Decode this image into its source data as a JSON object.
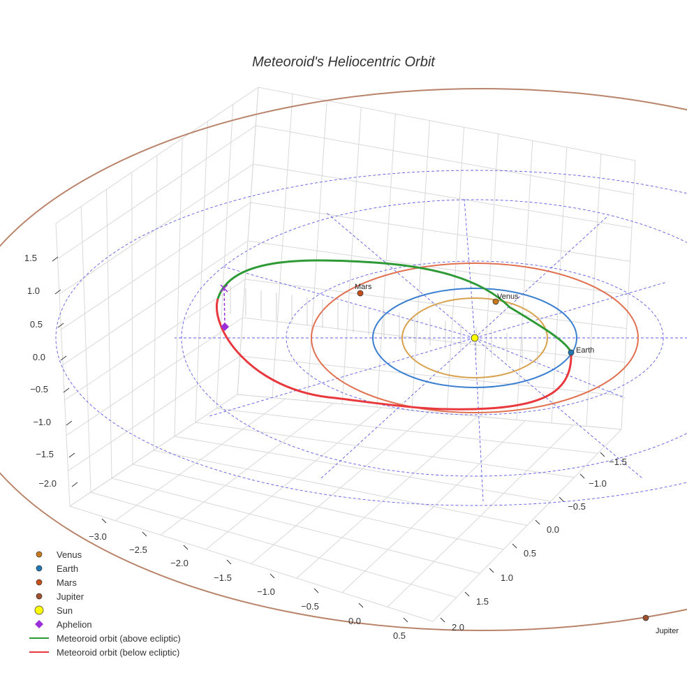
{
  "chart_data": {
    "type": "line",
    "projection": "3d",
    "title": "Meteoroid's Heliocentric Orbit",
    "axes": {
      "x": {
        "range": [
          -3.2,
          0.7
        ],
        "ticks": [
          -3.0,
          -2.5,
          -2.0,
          -1.5,
          -1.0,
          -0.5,
          0.0,
          0.5
        ],
        "tick_labels": [
          "−3.0",
          "−2.5",
          "−2.0",
          "−1.5",
          "−1.0",
          "−0.5",
          "0.0",
          "0.5"
        ]
      },
      "y": {
        "range": [
          -1.8,
          2.2
        ],
        "ticks": [
          -1.5,
          -1.0,
          -0.5,
          0.0,
          0.5,
          1.0,
          1.5,
          2.0
        ],
        "tick_labels": [
          "−1.5",
          "−1.0",
          "−0.5",
          "0.0",
          "0.5",
          "1.0",
          "1.5",
          "2.0"
        ]
      },
      "z": {
        "range": [
          -2.2,
          1.8
        ],
        "ticks": [
          1.5,
          1.0,
          0.5,
          0.0,
          -0.5,
          -1.0,
          -1.5,
          -2.0
        ],
        "tick_labels": [
          "1.5",
          "1.0",
          "0.5",
          "0.0",
          "−0.5",
          "−1.0",
          "−1.5",
          "−2.0"
        ]
      },
      "grid": true
    },
    "planets": [
      {
        "name": "Venus",
        "label": "Venus",
        "orbit_radius_au": 0.72,
        "color": "#c87a1e",
        "orbit_color": "#d9a24f"
      },
      {
        "name": "Earth",
        "label": "Earth",
        "orbit_radius_au": 1.0,
        "color": "#1f77b4",
        "orbit_color": "#3a7fd0"
      },
      {
        "name": "Mars",
        "label": "Mars",
        "orbit_radius_au": 1.52,
        "color": "#c94f1a",
        "orbit_color": "#e07050"
      },
      {
        "name": "Jupiter",
        "label": "Jupiter",
        "orbit_radius_au": 5.2,
        "color": "#a0522d",
        "orbit_color": "#b9836a"
      }
    ],
    "sun": {
      "name": "Sun",
      "x": 0,
      "y": 0,
      "z": 0,
      "color": "#ffff00"
    },
    "aphelion": {
      "name": "Aphelion",
      "color": "#9b30d9"
    },
    "series": [
      {
        "name": "Meteoroid orbit (above ecliptic)",
        "color": "#2e9a35"
      },
      {
        "name": "Meteoroid orbit (below ecliptic)",
        "color": "#e8383d"
      }
    ],
    "legend": {
      "position": "bottom-left",
      "items": [
        {
          "label": "Venus",
          "marker": "dot",
          "color": "#c87a1e"
        },
        {
          "label": "Earth",
          "marker": "dot",
          "color": "#1f77b4"
        },
        {
          "label": "Mars",
          "marker": "dot",
          "color": "#c94f1a"
        },
        {
          "label": "Jupiter",
          "marker": "dot",
          "color": "#a0522d"
        },
        {
          "label": "Sun",
          "marker": "bigdot",
          "color": "#ffff00"
        },
        {
          "label": "Aphelion",
          "marker": "diamond",
          "color": "#9b30d9"
        },
        {
          "label": "Meteoroid orbit (above ecliptic)",
          "marker": "line",
          "color": "#2e9a35"
        },
        {
          "label": "Meteoroid orbit (below ecliptic)",
          "marker": "line",
          "color": "#e8383d"
        }
      ]
    }
  }
}
